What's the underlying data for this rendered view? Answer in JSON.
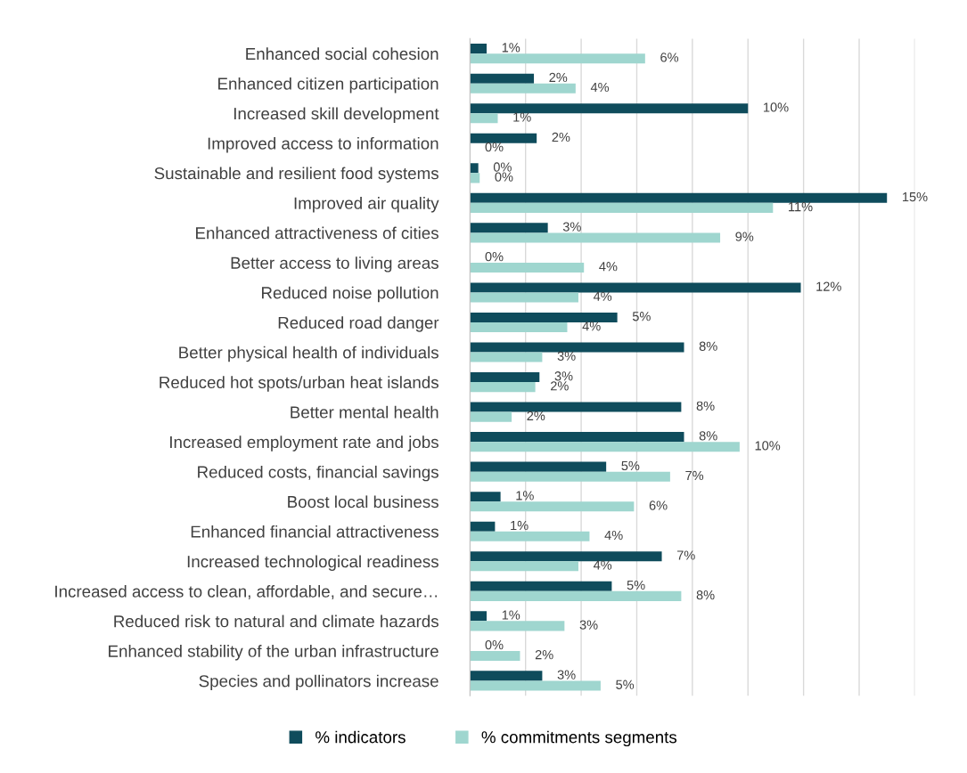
{
  "chart_data": {
    "type": "bar",
    "orientation": "horizontal",
    "categories": [
      "Enhanced social cohesion",
      "Enhanced citizen participation",
      "Increased skill development",
      "Improved access to information",
      "Sustainable and resilient food systems",
      "Improved air quality",
      "Enhanced attractiveness of cities",
      "Better access to living areas",
      "Reduced noise pollution",
      "Reduced road danger",
      "Better physical health of individuals",
      "Reduced hot spots/urban heat islands",
      "Better mental health",
      "Increased employment rate and jobs",
      "Reduced costs, financial savings",
      "Boost local business",
      "Enhanced financial attractiveness",
      "Increased technological readiness",
      "Increased access to clean, affordable, and secure…",
      "Reduced risk to natural and climate hazards",
      "Enhanced stability of the urban infrastructure",
      "Species and pollinators increase"
    ],
    "series": [
      {
        "name": "% indicators",
        "color": "#0f4c5c",
        "values": [
          0.6,
          2.3,
          10.0,
          2.4,
          0.3,
          15.0,
          2.8,
          0,
          11.9,
          5.3,
          7.7,
          2.5,
          7.6,
          7.7,
          4.9,
          1.1,
          0.9,
          6.9,
          5.1,
          0.6,
          0,
          2.6
        ],
        "value_labels": [
          "1%",
          "2%",
          "10%",
          "2%",
          "0%",
          "15%",
          "3%",
          "0%",
          "12%",
          "5%",
          "8%",
          "3%",
          "8%",
          "8%",
          "5%",
          "1%",
          "1%",
          "7%",
          "5%",
          "1%",
          "0%",
          "3%"
        ]
      },
      {
        "name": "% commitments segments",
        "color": "#9fd6cf",
        "values": [
          6.3,
          3.8,
          1.0,
          0,
          0.35,
          10.9,
          9.0,
          4.1,
          3.9,
          3.5,
          2.6,
          2.35,
          1.5,
          9.7,
          7.2,
          5.9,
          4.3,
          3.9,
          7.6,
          3.4,
          1.8,
          4.7
        ],
        "value_labels": [
          "6%",
          "4%",
          "1%",
          "0%",
          "0%",
          "11%",
          "9%",
          "4%",
          "4%",
          "4%",
          "3%",
          "2%",
          "2%",
          "10%",
          "7%",
          "6%",
          "4%",
          "4%",
          "8%",
          "3%",
          "2%",
          "5%"
        ]
      }
    ],
    "xlim": [
      0,
      16
    ],
    "xticks": [
      {
        "value": 0,
        "label": null
      },
      {
        "value": 2,
        "label": null
      },
      {
        "value": 4,
        "label": null
      },
      {
        "value": 6,
        "label": null
      },
      {
        "value": 8,
        "label": null
      },
      {
        "value": 10,
        "label": null
      },
      {
        "value": 12,
        "label": null
      },
      {
        "value": 14,
        "label": null
      },
      {
        "value": 16,
        "label": null
      }
    ],
    "grid": "x",
    "legend": "bottom",
    "tick_labels": "y"
  }
}
